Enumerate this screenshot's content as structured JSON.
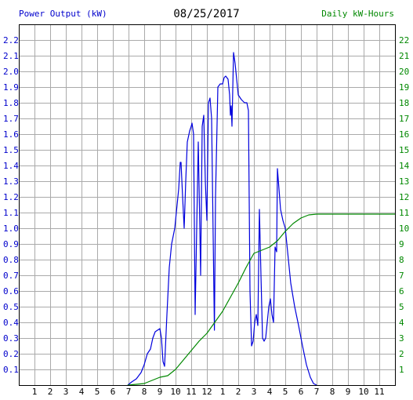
{
  "header": {
    "left_title": "Power Output (kW)",
    "date": "08/25/2017",
    "right_title": "Daily kW-Hours"
  },
  "colors": {
    "power": "#0000dd",
    "energy": "#008800",
    "left_axis_text": "#0000cc",
    "right_axis_text": "#008800",
    "grid": "#aaaaaa",
    "frame": "#000000"
  },
  "chart_data": {
    "type": "line",
    "title": "08/25/2017",
    "grid": true,
    "x_hours": [
      0,
      24
    ],
    "xtick_labels": [
      "1",
      "2",
      "3",
      "4",
      "5",
      "6",
      "7",
      "8",
      "9",
      "10",
      "11",
      "12",
      "1",
      "2",
      "3",
      "4",
      "5",
      "6",
      "7",
      "8",
      "9",
      "10",
      "11"
    ],
    "ylim_left": [
      0,
      2.3
    ],
    "ylim_right": [
      0,
      23
    ],
    "ytick_left": [
      "0.1",
      "0.2",
      "0.3",
      "0.4",
      "0.5",
      "0.6",
      "0.7",
      "0.8",
      "0.9",
      "1.0",
      "1.1",
      "1.2",
      "1.3",
      "1.4",
      "1.5",
      "1.6",
      "1.7",
      "1.8",
      "1.9",
      "2.0",
      "2.1",
      "2.2"
    ],
    "ytick_right": [
      "1",
      "2",
      "3",
      "4",
      "5",
      "6",
      "7",
      "8",
      "9",
      "10",
      "11",
      "12",
      "13",
      "14",
      "15",
      "16",
      "17",
      "18",
      "19",
      "20",
      "21",
      "22"
    ],
    "series": [
      {
        "name": "Power Output (kW)",
        "axis": "left",
        "points": [
          [
            6.95,
            0.0
          ],
          [
            7.2,
            0.02
          ],
          [
            7.5,
            0.04
          ],
          [
            7.8,
            0.08
          ],
          [
            8.0,
            0.13
          ],
          [
            8.2,
            0.2
          ],
          [
            8.4,
            0.23
          ],
          [
            8.55,
            0.3
          ],
          [
            8.7,
            0.34
          ],
          [
            8.85,
            0.35
          ],
          [
            9.0,
            0.36
          ],
          [
            9.1,
            0.3
          ],
          [
            9.2,
            0.15
          ],
          [
            9.3,
            0.12
          ],
          [
            9.45,
            0.45
          ],
          [
            9.6,
            0.75
          ],
          [
            9.75,
            0.9
          ],
          [
            9.95,
            1.0
          ],
          [
            10.1,
            1.15
          ],
          [
            10.2,
            1.25
          ],
          [
            10.3,
            1.42
          ],
          [
            10.35,
            1.42
          ],
          [
            10.45,
            1.2
          ],
          [
            10.55,
            1.0
          ],
          [
            10.65,
            1.3
          ],
          [
            10.75,
            1.55
          ],
          [
            10.9,
            1.62
          ],
          [
            11.0,
            1.65
          ],
          [
            11.05,
            1.67
          ],
          [
            11.15,
            1.6
          ],
          [
            11.25,
            0.45
          ],
          [
            11.35,
            1.0
          ],
          [
            11.45,
            1.55
          ],
          [
            11.55,
            1.0
          ],
          [
            11.6,
            0.7
          ],
          [
            11.7,
            1.65
          ],
          [
            11.8,
            1.72
          ],
          [
            11.9,
            1.3
          ],
          [
            12.0,
            1.05
          ],
          [
            12.1,
            1.8
          ],
          [
            12.2,
            1.83
          ],
          [
            12.3,
            1.7
          ],
          [
            12.4,
            0.95
          ],
          [
            12.48,
            0.35
          ],
          [
            12.55,
            1.2
          ],
          [
            12.7,
            1.9
          ],
          [
            12.85,
            1.92
          ],
          [
            13.0,
            1.92
          ],
          [
            13.1,
            1.96
          ],
          [
            13.2,
            1.97
          ],
          [
            13.35,
            1.95
          ],
          [
            13.45,
            1.85
          ],
          [
            13.5,
            1.72
          ],
          [
            13.55,
            1.78
          ],
          [
            13.6,
            1.65
          ],
          [
            13.7,
            2.12
          ],
          [
            13.8,
            2.05
          ],
          [
            13.9,
            1.95
          ],
          [
            14.0,
            1.85
          ],
          [
            14.2,
            1.82
          ],
          [
            14.4,
            1.8
          ],
          [
            14.55,
            1.8
          ],
          [
            14.65,
            1.75
          ],
          [
            14.75,
            0.6
          ],
          [
            14.85,
            0.25
          ],
          [
            14.95,
            0.28
          ],
          [
            15.05,
            0.4
          ],
          [
            15.15,
            0.45
          ],
          [
            15.25,
            0.38
          ],
          [
            15.35,
            1.12
          ],
          [
            15.45,
            0.7
          ],
          [
            15.55,
            0.3
          ],
          [
            15.65,
            0.28
          ],
          [
            15.75,
            0.3
          ],
          [
            15.85,
            0.4
          ],
          [
            15.95,
            0.5
          ],
          [
            16.05,
            0.55
          ],
          [
            16.15,
            0.45
          ],
          [
            16.25,
            0.4
          ],
          [
            16.35,
            0.88
          ],
          [
            16.45,
            0.85
          ],
          [
            16.5,
            1.38
          ],
          [
            16.6,
            1.25
          ],
          [
            16.7,
            1.12
          ],
          [
            16.85,
            1.05
          ],
          [
            17.0,
            1.0
          ],
          [
            17.15,
            0.85
          ],
          [
            17.35,
            0.65
          ],
          [
            17.6,
            0.5
          ],
          [
            17.85,
            0.38
          ],
          [
            18.1,
            0.25
          ],
          [
            18.35,
            0.13
          ],
          [
            18.6,
            0.05
          ],
          [
            18.8,
            0.01
          ],
          [
            19.0,
            0.0
          ]
        ]
      },
      {
        "name": "Daily kW-Hours",
        "axis": "right",
        "points": [
          [
            6.95,
            0.0
          ],
          [
            7.5,
            0.05
          ],
          [
            8.0,
            0.1
          ],
          [
            8.5,
            0.3
          ],
          [
            9.0,
            0.5
          ],
          [
            9.5,
            0.6
          ],
          [
            10.0,
            1.0
          ],
          [
            10.5,
            1.6
          ],
          [
            11.0,
            2.2
          ],
          [
            11.5,
            2.8
          ],
          [
            12.0,
            3.3
          ],
          [
            12.5,
            4.0
          ],
          [
            13.0,
            4.7
          ],
          [
            13.5,
            5.6
          ],
          [
            14.0,
            6.5
          ],
          [
            14.5,
            7.5
          ],
          [
            15.0,
            8.4
          ],
          [
            15.5,
            8.6
          ],
          [
            16.0,
            8.8
          ],
          [
            16.5,
            9.2
          ],
          [
            17.0,
            9.8
          ],
          [
            17.5,
            10.3
          ],
          [
            18.0,
            10.65
          ],
          [
            18.5,
            10.85
          ],
          [
            19.0,
            10.9
          ],
          [
            20.0,
            10.9
          ],
          [
            21.0,
            10.9
          ],
          [
            22.0,
            10.9
          ],
          [
            23.0,
            10.9
          ],
          [
            24.0,
            10.9
          ]
        ]
      }
    ]
  }
}
